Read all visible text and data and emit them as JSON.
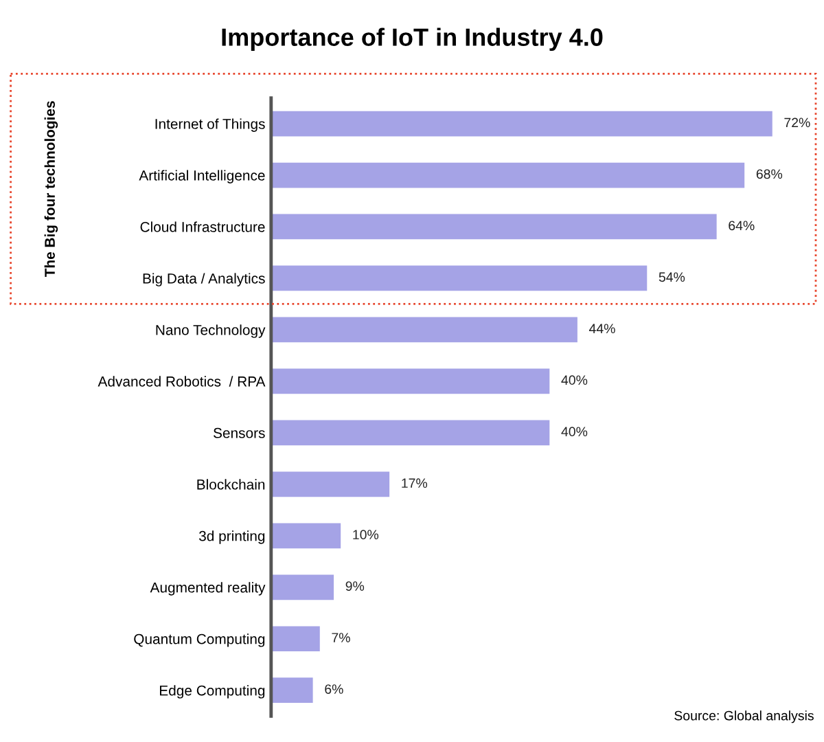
{
  "chart_data": {
    "type": "bar",
    "orientation": "horizontal",
    "title": "Importance of IoT in Industry 4.0",
    "categories": [
      "Internet of Things",
      "Artificial Intelligence",
      "Cloud Infrastructure",
      "Big Data / Analytics",
      "Nano Technology",
      "Advanced Robotics  / RPA",
      "Sensors",
      "Blockchain",
      "3d printing",
      "Augmented reality",
      "Quantum Computing",
      "Edge Computing"
    ],
    "values": [
      72,
      68,
      64,
      54,
      44,
      40,
      40,
      17,
      10,
      9,
      7,
      6
    ],
    "value_labels": [
      "72%",
      "68%",
      "64%",
      "54%",
      "44%",
      "40%",
      "40%",
      "17%",
      "10%",
      "9%",
      "7%",
      "6%"
    ],
    "color": "#a5a3e6",
    "tick_labels": "y",
    "grid": false,
    "legend": false,
    "annotations": [
      "The Big four technologies",
      "Source: Global analysis"
    ]
  }
}
